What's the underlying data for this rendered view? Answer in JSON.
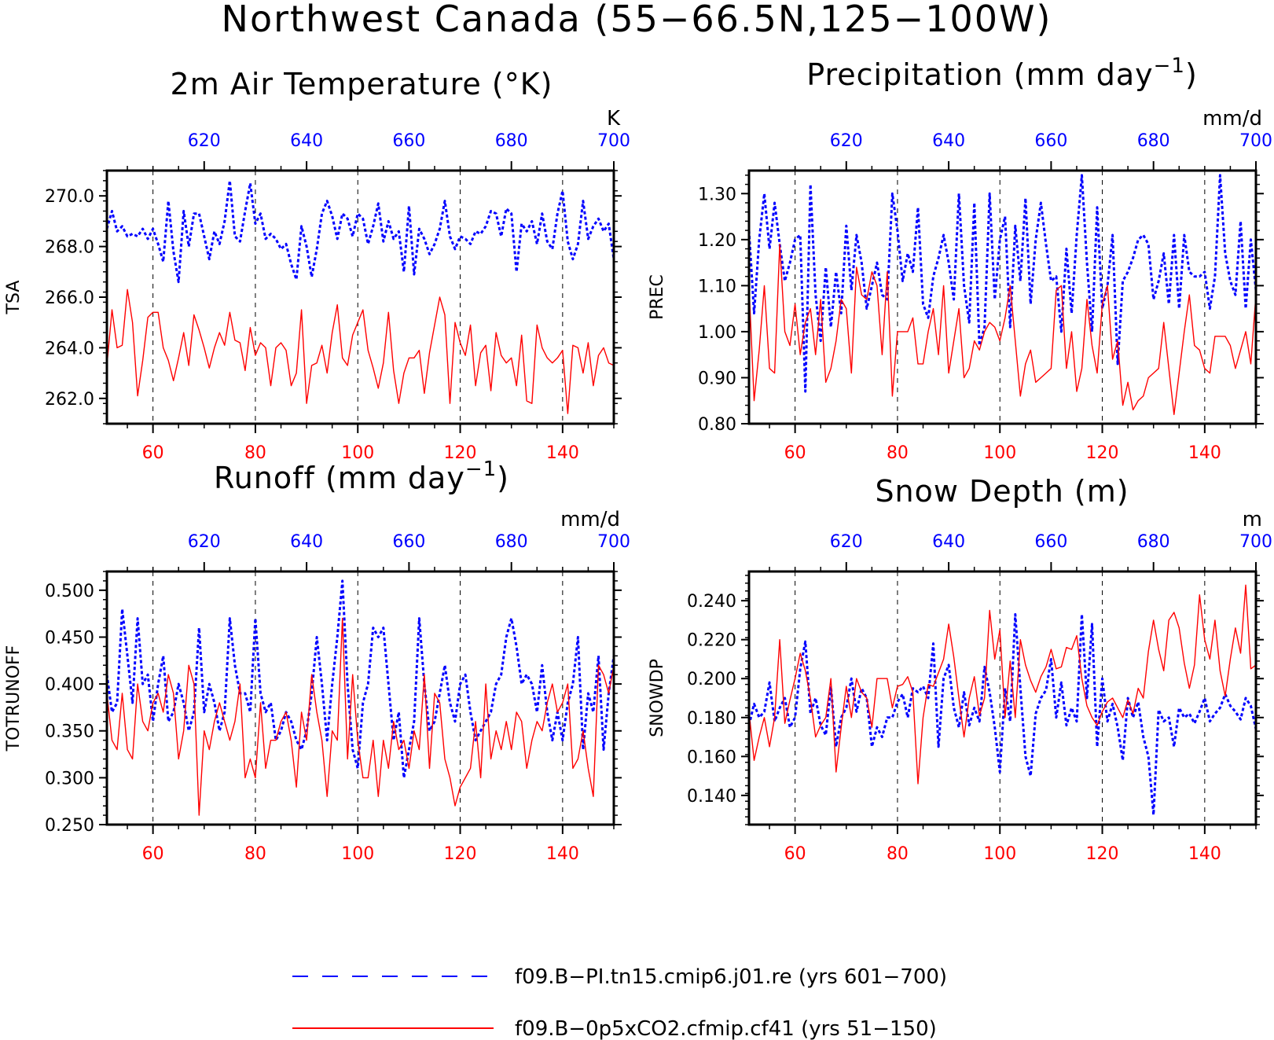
{
  "title": "Northwest Canada (55−66.5N,125−100W)",
  "legend": [
    {
      "label": "f09.B−PI.tn15.cmip6.j01.re (yrs 601−700)",
      "color": "#0000ff",
      "style": "dashed"
    },
    {
      "label": "f09.B−0p5xCO2.cfmip.cf41 (yrs 51−150)",
      "color": "#ff0000",
      "style": "solid"
    }
  ],
  "chart_data": [
    {
      "type": "line",
      "title": "2m Air Temperature (°K)",
      "title_sup": "",
      "ylabel": "TSA",
      "units": "K",
      "ylim": [
        261.0,
        271.0
      ],
      "yticks": [
        "262.0",
        "264.0",
        "266.0",
        "268.0",
        "270.0"
      ],
      "xlim_bottom": [
        51,
        150
      ],
      "xlim_top": [
        601,
        700
      ],
      "xticks_bottom": [
        "60",
        "80",
        "100",
        "120",
        "140"
      ],
      "xticks_top": [
        "620",
        "640",
        "660",
        "680",
        "700"
      ],
      "vgrid": [
        60,
        80,
        100,
        120,
        140
      ],
      "series": [
        {
          "color": "#0000ff",
          "style": "dashed",
          "x_start": 601,
          "values": [
            268.7,
            269.4,
            268.6,
            268.8,
            268.4,
            268.5,
            268.4,
            268.7,
            268.3,
            268.7,
            268.1,
            267.4,
            269.8,
            267.8,
            266.6,
            269.4,
            268.0,
            269.3,
            269.3,
            268.4,
            267.5,
            268.6,
            268.1,
            269.0,
            270.6,
            268.4,
            268.2,
            269.4,
            270.5,
            268.9,
            269.3,
            268.3,
            268.5,
            268.3,
            267.9,
            268.1,
            267.3,
            266.7,
            268.8,
            268.0,
            266.8,
            267.9,
            269.3,
            269.8,
            269.2,
            268.3,
            269.3,
            269.1,
            268.4,
            269.3,
            269.1,
            268.1,
            268.8,
            269.7,
            268.2,
            269.0,
            268.3,
            268.6,
            267.0,
            269.6,
            266.9,
            268.7,
            268.3,
            267.7,
            268.1,
            268.7,
            269.8,
            268.4,
            267.9,
            268.4,
            268.3,
            268.1,
            268.6,
            268.5,
            268.8,
            269.4,
            269.3,
            268.4,
            269.5,
            269.3,
            267.0,
            268.9,
            268.6,
            269.0,
            268.1,
            269.3,
            268.2,
            267.9,
            269.3,
            270.2,
            268.2,
            267.5,
            268.1,
            269.8,
            268.3,
            268.8,
            269.1,
            268.6,
            268.9,
            267.5
          ]
        },
        {
          "color": "#ff0000",
          "style": "solid",
          "x_start": 51,
          "values": [
            263.3,
            265.5,
            264.0,
            264.1,
            266.3,
            265.0,
            262.1,
            263.5,
            265.2,
            265.4,
            265.4,
            264.0,
            263.5,
            262.7,
            263.6,
            264.6,
            263.3,
            265.3,
            264.7,
            264.0,
            263.2,
            264.0,
            264.6,
            264.1,
            265.4,
            264.3,
            264.2,
            263.1,
            264.8,
            263.7,
            264.2,
            264.0,
            262.5,
            264.0,
            264.2,
            263.9,
            262.5,
            263.0,
            265.5,
            261.8,
            263.3,
            263.4,
            264.1,
            263.0,
            264.6,
            265.7,
            263.6,
            263.3,
            264.5,
            265.0,
            265.5,
            263.9,
            263.2,
            262.4,
            263.4,
            265.4,
            263.1,
            261.8,
            263.0,
            263.6,
            263.6,
            263.9,
            262.2,
            263.8,
            264.9,
            266.0,
            265.3,
            261.8,
            265.0,
            264.2,
            263.7,
            264.9,
            262.5,
            263.8,
            264.1,
            262.3,
            264.6,
            263.7,
            263.4,
            263.6,
            262.5,
            264.5,
            261.9,
            261.8,
            264.9,
            264.0,
            263.6,
            263.4,
            263.6,
            263.9,
            261.4,
            264.1,
            264.0,
            263.0,
            264.2,
            262.5,
            263.7,
            264.0,
            263.4,
            263.3
          ]
        }
      ]
    },
    {
      "type": "line",
      "title": "Precipitation (mm day",
      "title_sup": "−1",
      "title_end": ")",
      "ylabel": "PREC",
      "units": "mm/d",
      "ylim": [
        0.8,
        1.35
      ],
      "yticks": [
        "0.80",
        "0.90",
        "1.00",
        "1.10",
        "1.20",
        "1.30"
      ],
      "xlim_bottom": [
        51,
        150
      ],
      "xlim_top": [
        601,
        700
      ],
      "xticks_bottom": [
        "60",
        "80",
        "100",
        "120",
        "140"
      ],
      "xticks_top": [
        "620",
        "640",
        "660",
        "680",
        "700"
      ],
      "vgrid": [
        60,
        80,
        100,
        120,
        140
      ],
      "series": [
        {
          "color": "#0000ff",
          "style": "dashed",
          "x_start": 601,
          "values": [
            1.22,
            1.04,
            1.2,
            1.3,
            1.18,
            1.28,
            1.19,
            1.11,
            1.15,
            1.2,
            1.21,
            0.87,
            1.32,
            1.08,
            0.98,
            1.14,
            1.01,
            1.13,
            1.04,
            1.23,
            1.09,
            1.21,
            1.15,
            1.05,
            1.1,
            1.15,
            1.08,
            1.07,
            1.3,
            1.22,
            1.11,
            1.17,
            1.13,
            1.27,
            1.06,
            1.03,
            1.12,
            1.16,
            1.21,
            1.15,
            1.07,
            1.3,
            1.1,
            1.02,
            1.28,
            0.97,
            1.01,
            1.3,
            1.07,
            1.2,
            1.25,
            1.01,
            1.23,
            1.11,
            1.29,
            1.06,
            1.2,
            1.28,
            1.19,
            1.11,
            1.12,
            1.0,
            1.18,
            1.04,
            1.21,
            1.34,
            1.15,
            1.0,
            1.27,
            1.05,
            1.1,
            1.21,
            0.93,
            1.11,
            1.13,
            1.16,
            1.2,
            1.21,
            1.19,
            1.07,
            1.11,
            1.17,
            1.06,
            1.21,
            1.05,
            1.21,
            1.13,
            1.12,
            1.12,
            1.13,
            1.05,
            1.12,
            1.34,
            1.17,
            1.11,
            1.08,
            1.24,
            1.05,
            1.2,
            1.09
          ]
        },
        {
          "color": "#ff0000",
          "style": "solid",
          "x_start": 51,
          "values": [
            1.1,
            0.85,
            0.96,
            1.1,
            0.92,
            0.91,
            1.19,
            1.0,
            0.97,
            1.06,
            0.95,
            1.02,
            1.05,
            0.95,
            1.07,
            0.89,
            0.92,
            0.98,
            1.07,
            1.05,
            0.91,
            1.14,
            1.08,
            1.07,
            1.13,
            1.1,
            0.95,
            1.13,
            0.86,
            1.0,
            1.0,
            1.0,
            1.03,
            0.93,
            0.93,
            1.0,
            1.05,
            0.95,
            1.1,
            0.91,
            0.98,
            1.05,
            0.9,
            0.92,
            0.98,
            0.96,
            1.0,
            1.02,
            1.01,
            0.98,
            1.03,
            1.1,
            0.98,
            0.86,
            0.93,
            0.96,
            0.89,
            0.9,
            0.91,
            0.92,
            1.09,
            1.1,
            0.92,
            1.0,
            0.87,
            0.92,
            1.07,
            0.97,
            0.91,
            1.06,
            1.1,
            0.94,
            0.98,
            0.84,
            0.89,
            0.83,
            0.85,
            0.86,
            0.9,
            0.91,
            0.92,
            1.02,
            0.92,
            0.82,
            0.91,
            1.0,
            1.08,
            0.97,
            0.96,
            0.92,
            0.91,
            0.99,
            0.99,
            0.99,
            0.97,
            0.92,
            0.96,
            1.0,
            0.93,
            1.08
          ]
        }
      ]
    },
    {
      "type": "line",
      "title": "Runoff (mm day",
      "title_sup": "−1",
      "title_end": ")",
      "ylabel": "TOTRUNOFF",
      "units": "mm/d",
      "ylim": [
        0.25,
        0.52
      ],
      "yticks": [
        "0.250",
        "0.300",
        "0.350",
        "0.400",
        "0.450",
        "0.500"
      ],
      "xlim_bottom": [
        51,
        150
      ],
      "xlim_top": [
        601,
        700
      ],
      "xticks_bottom": [
        "60",
        "80",
        "100",
        "120",
        "140"
      ],
      "xticks_top": [
        "620",
        "640",
        "660",
        "680",
        "700"
      ],
      "vgrid": [
        60,
        80,
        100,
        120,
        140
      ],
      "series": [
        {
          "color": "#0000ff",
          "style": "dashed",
          "x_start": 601,
          "values": [
            0.41,
            0.37,
            0.38,
            0.48,
            0.43,
            0.38,
            0.47,
            0.4,
            0.41,
            0.36,
            0.4,
            0.43,
            0.36,
            0.37,
            0.4,
            0.38,
            0.35,
            0.37,
            0.46,
            0.37,
            0.4,
            0.38,
            0.35,
            0.37,
            0.47,
            0.42,
            0.39,
            0.39,
            0.37,
            0.47,
            0.39,
            0.37,
            0.38,
            0.34,
            0.35,
            0.37,
            0.36,
            0.34,
            0.33,
            0.35,
            0.39,
            0.45,
            0.4,
            0.34,
            0.4,
            0.45,
            0.51,
            0.4,
            0.33,
            0.31,
            0.38,
            0.4,
            0.46,
            0.45,
            0.46,
            0.4,
            0.34,
            0.37,
            0.3,
            0.33,
            0.36,
            0.47,
            0.4,
            0.35,
            0.36,
            0.39,
            0.42,
            0.38,
            0.36,
            0.4,
            0.41,
            0.37,
            0.34,
            0.35,
            0.36,
            0.37,
            0.4,
            0.41,
            0.45,
            0.47,
            0.44,
            0.4,
            0.41,
            0.4,
            0.37,
            0.42,
            0.37,
            0.34,
            0.37,
            0.34,
            0.38,
            0.4,
            0.45,
            0.33,
            0.39,
            0.37,
            0.43,
            0.33,
            0.39,
            0.43
          ]
        },
        {
          "color": "#ff0000",
          "style": "solid",
          "x_start": 51,
          "values": [
            0.39,
            0.34,
            0.33,
            0.39,
            0.33,
            0.32,
            0.4,
            0.36,
            0.35,
            0.38,
            0.39,
            0.37,
            0.41,
            0.39,
            0.32,
            0.35,
            0.42,
            0.4,
            0.26,
            0.35,
            0.33,
            0.36,
            0.38,
            0.36,
            0.34,
            0.36,
            0.4,
            0.3,
            0.32,
            0.3,
            0.38,
            0.31,
            0.34,
            0.34,
            0.36,
            0.37,
            0.34,
            0.29,
            0.37,
            0.34,
            0.41,
            0.37,
            0.34,
            0.28,
            0.35,
            0.34,
            0.47,
            0.32,
            0.41,
            0.34,
            0.3,
            0.3,
            0.34,
            0.28,
            0.34,
            0.31,
            0.36,
            0.33,
            0.34,
            0.31,
            0.35,
            0.33,
            0.41,
            0.31,
            0.39,
            0.38,
            0.32,
            0.3,
            0.27,
            0.29,
            0.3,
            0.31,
            0.36,
            0.3,
            0.4,
            0.32,
            0.35,
            0.33,
            0.36,
            0.33,
            0.37,
            0.36,
            0.31,
            0.34,
            0.36,
            0.35,
            0.38,
            0.4,
            0.37,
            0.38,
            0.4,
            0.31,
            0.32,
            0.35,
            0.31,
            0.28,
            0.42,
            0.41,
            0.39,
            0.42
          ]
        }
      ]
    },
    {
      "type": "line",
      "title": "Snow Depth (m)",
      "title_sup": "",
      "ylabel": "SNOWDP",
      "units": "m",
      "ylim": [
        0.125,
        0.255
      ],
      "yticks": [
        "0.140",
        "0.160",
        "0.180",
        "0.200",
        "0.220",
        "0.240"
      ],
      "xlim_bottom": [
        51,
        150
      ],
      "xlim_top": [
        601,
        700
      ],
      "xticks_bottom": [
        "60",
        "80",
        "100",
        "120",
        "140"
      ],
      "xticks_top": [
        "620",
        "640",
        "660",
        "680",
        "700"
      ],
      "vgrid": [
        60,
        80,
        100,
        120,
        140
      ],
      "series": [
        {
          "color": "#0000ff",
          "style": "dashed",
          "x_start": 601,
          "values": [
            0.176,
            0.187,
            0.18,
            0.183,
            0.198,
            0.178,
            0.185,
            0.19,
            0.175,
            0.18,
            0.205,
            0.219,
            0.182,
            0.19,
            0.176,
            0.171,
            0.196,
            0.165,
            0.18,
            0.185,
            0.2,
            0.183,
            0.195,
            0.19,
            0.165,
            0.175,
            0.17,
            0.18,
            0.18,
            0.188,
            0.192,
            0.18,
            0.195,
            0.193,
            0.196,
            0.19,
            0.218,
            0.165,
            0.2,
            0.207,
            0.185,
            0.175,
            0.193,
            0.176,
            0.185,
            0.178,
            0.206,
            0.193,
            0.175,
            0.152,
            0.195,
            0.178,
            0.233,
            0.195,
            0.16,
            0.15,
            0.182,
            0.19,
            0.194,
            0.21,
            0.18,
            0.198,
            0.176,
            0.185,
            0.178,
            0.233,
            0.19,
            0.228,
            0.165,
            0.2,
            0.178,
            0.187,
            0.175,
            0.158,
            0.19,
            0.18,
            0.188,
            0.17,
            0.16,
            0.13,
            0.184,
            0.178,
            0.18,
            0.165,
            0.185,
            0.18,
            0.182,
            0.177,
            0.183,
            0.19,
            0.178,
            0.182,
            0.185,
            0.192,
            0.186,
            0.183,
            0.179,
            0.19,
            0.186,
            0.174
          ]
        },
        {
          "color": "#ff0000",
          "style": "solid",
          "x_start": 51,
          "values": [
            0.183,
            0.158,
            0.17,
            0.18,
            0.165,
            0.18,
            0.22,
            0.177,
            0.189,
            0.2,
            0.213,
            0.204,
            0.19,
            0.17,
            0.176,
            0.18,
            0.2,
            0.152,
            0.175,
            0.196,
            0.18,
            0.2,
            0.193,
            0.19,
            0.175,
            0.2,
            0.2,
            0.2,
            0.185,
            0.196,
            0.197,
            0.201,
            0.193,
            0.146,
            0.18,
            0.197,
            0.196,
            0.203,
            0.21,
            0.228,
            0.211,
            0.19,
            0.17,
            0.19,
            0.201,
            0.181,
            0.19,
            0.235,
            0.21,
            0.225,
            0.18,
            0.209,
            0.18,
            0.22,
            0.207,
            0.199,
            0.193,
            0.201,
            0.206,
            0.215,
            0.205,
            0.206,
            0.216,
            0.215,
            0.222,
            0.2,
            0.186,
            0.18,
            0.176,
            0.183,
            0.188,
            0.19,
            0.185,
            0.18,
            0.189,
            0.182,
            0.195,
            0.19,
            0.214,
            0.23,
            0.215,
            0.204,
            0.23,
            0.234,
            0.226,
            0.208,
            0.195,
            0.207,
            0.243,
            0.22,
            0.21,
            0.23,
            0.204,
            0.191,
            0.21,
            0.226,
            0.213,
            0.248,
            0.205,
            0.207
          ]
        }
      ]
    }
  ]
}
